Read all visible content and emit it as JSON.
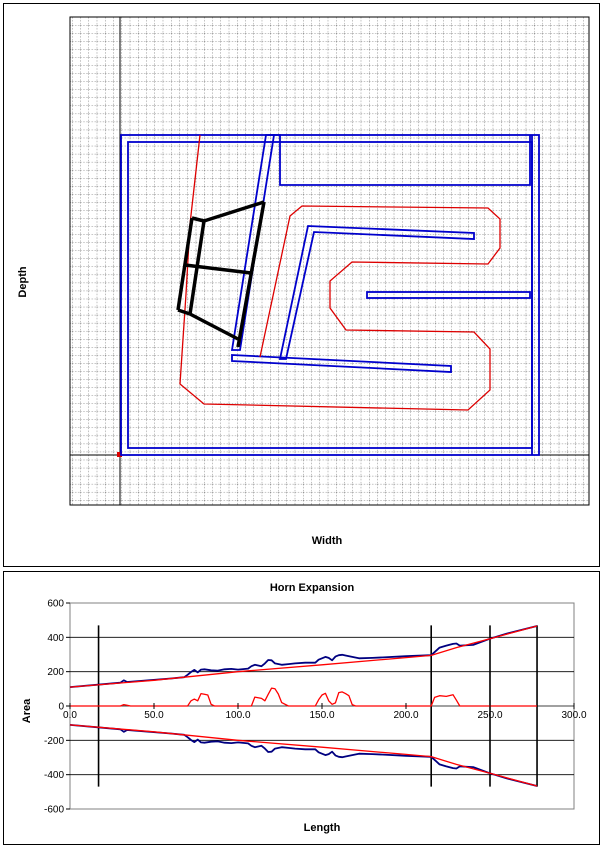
{
  "layout_chart": {
    "xlabel": "Width",
    "ylabel": "Depth",
    "colors": {
      "box": "#0000CC",
      "path": "#DD0000",
      "driver": "#000000",
      "grid": "#000000"
    }
  },
  "chart_data": {
    "type": "line",
    "title": "Horn Expansion",
    "xlabel": "Length",
    "ylabel": "Area",
    "xlim": [
      0,
      300
    ],
    "ylim": [
      -600,
      600
    ],
    "x_ticks": [
      "0.0",
      "50.0",
      "100.0",
      "150.0",
      "200.0",
      "250.0",
      "300.0"
    ],
    "y_ticks": [
      "600",
      "400",
      "200",
      "0",
      "-200",
      "-400",
      "-600"
    ],
    "grid": "horizontal",
    "vertical_markers": [
      17,
      215,
      250,
      278
    ],
    "series": [
      {
        "color": "#000080",
        "x": [
          0,
          30,
          32,
          34,
          60,
          68,
          70,
          72,
          74,
          76,
          78,
          80,
          84,
          88,
          92,
          96,
          100,
          106,
          108,
          110,
          112,
          114,
          116,
          118,
          120,
          122,
          126,
          130,
          134,
          140,
          146,
          148,
          150,
          152,
          154,
          156,
          158,
          160,
          162,
          164,
          168,
          172,
          180,
          200,
          215,
          220,
          224,
          228,
          230,
          232,
          240,
          250,
          260,
          270,
          278
        ],
        "values": [
          110,
          136,
          150,
          140,
          160,
          168,
          182,
          198,
          210,
          196,
          212,
          214,
          208,
          206,
          214,
          216,
          212,
          218,
          232,
          240,
          236,
          232,
          248,
          268,
          266,
          248,
          240,
          244,
          248,
          252,
          252,
          270,
          278,
          286,
          280,
          266,
          288,
          296,
          298,
          294,
          286,
          278,
          280,
          290,
          296,
          340,
          352,
          362,
          364,
          352,
          356,
          392,
          422,
          446,
          466
        ]
      },
      {
        "color": "#FF0000",
        "x": [
          0,
          50,
          100,
          150,
          200,
          215,
          230,
          250,
          278
        ],
        "values": [
          110,
          150,
          200,
          240,
          282,
          295,
          340,
          392,
          466
        ]
      },
      {
        "color": "#FF0000",
        "x": [
          0,
          30,
          32,
          34,
          36,
          70,
          72,
          74,
          76,
          78,
          80,
          82,
          84,
          86,
          100,
          108,
          110,
          114,
          116,
          118,
          120,
          122,
          124,
          126,
          130,
          146,
          148,
          150,
          152,
          154,
          156,
          158,
          160,
          162,
          164,
          166,
          168,
          170,
          215,
          217,
          220,
          224,
          228,
          230,
          232,
          278
        ],
        "values": [
          0,
          0,
          8,
          4,
          0,
          0,
          30,
          40,
          30,
          72,
          68,
          64,
          10,
          0,
          0,
          0,
          52,
          44,
          30,
          68,
          104,
          100,
          70,
          20,
          0,
          0,
          36,
          64,
          74,
          30,
          10,
          18,
          78,
          82,
          72,
          60,
          8,
          0,
          0,
          50,
          60,
          56,
          66,
          34,
          0,
          0
        ]
      },
      {
        "color": "#000080",
        "x": [
          0,
          30,
          32,
          34,
          60,
          68,
          70,
          72,
          74,
          76,
          78,
          80,
          84,
          88,
          92,
          96,
          100,
          106,
          108,
          110,
          112,
          114,
          116,
          118,
          120,
          122,
          126,
          130,
          134,
          140,
          146,
          148,
          150,
          152,
          154,
          156,
          158,
          160,
          162,
          164,
          168,
          172,
          180,
          200,
          215,
          220,
          224,
          228,
          230,
          232,
          240,
          250,
          260,
          270,
          278
        ],
        "values": [
          -110,
          -136,
          -150,
          -140,
          -160,
          -168,
          -182,
          -198,
          -210,
          -196,
          -212,
          -214,
          -208,
          -206,
          -214,
          -216,
          -212,
          -218,
          -232,
          -240,
          -236,
          -232,
          -248,
          -268,
          -266,
          -248,
          -240,
          -244,
          -248,
          -252,
          -252,
          -270,
          -278,
          -286,
          -280,
          -266,
          -288,
          -296,
          -298,
          -294,
          -286,
          -278,
          -280,
          -290,
          -296,
          -340,
          -352,
          -362,
          -364,
          -352,
          -356,
          -392,
          -422,
          -446,
          -466
        ]
      },
      {
        "color": "#FF0000",
        "x": [
          0,
          50,
          100,
          150,
          200,
          215,
          230,
          250,
          278
        ],
        "values": [
          -110,
          -150,
          -200,
          -240,
          -282,
          -295,
          -340,
          -392,
          -466
        ]
      }
    ]
  }
}
